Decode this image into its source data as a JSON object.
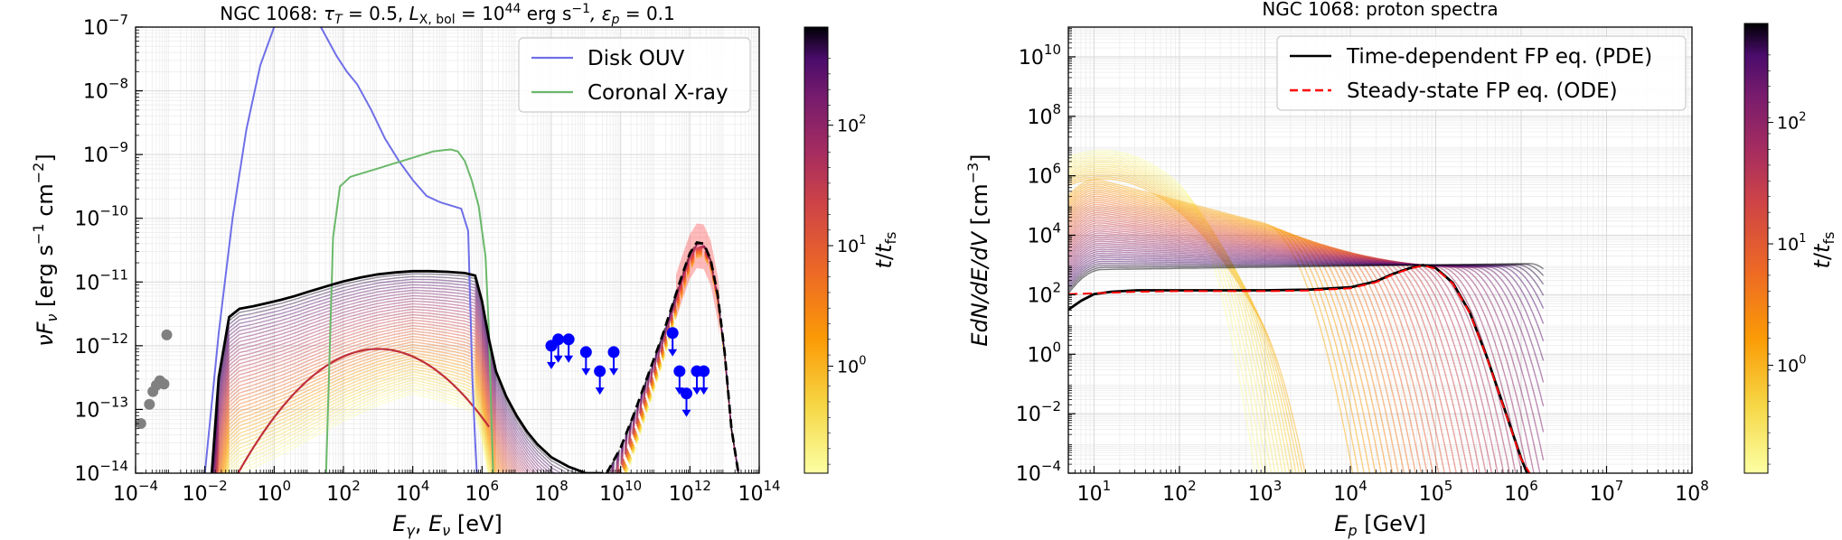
{
  "chart_data": [
    {
      "type": "line",
      "title": "NGC 1068: τ_T = 0.5,  L_X,bol = 10^44 erg s⁻¹,  ε_p = 0.1",
      "title_parts": {
        "prefix": "NGC 1068: ",
        "tau": "τ",
        "tau_sub": "T",
        "tau_val": " = 0.5,  ",
        "L": "L",
        "L_sub": "X, bol",
        "L_val": " = 10",
        "L_exp": "44",
        "L_unit": " erg s",
        "L_unit_exp": "−1",
        "eps": ",  ε",
        "eps_sub": "p",
        "eps_val": " = 0.1"
      },
      "xlabel_parts": {
        "a": "E",
        "a_sub": "γ",
        "mid": ",  ",
        "b": "E",
        "b_sub": "ν",
        "unit": " [eV]"
      },
      "ylabel_parts": {
        "a": "νF",
        "a_sub": "ν",
        "unit": " [erg s",
        "exp1": "−1",
        "mid": " cm",
        "exp2": "−2",
        "end": "]"
      },
      "x_scale": "log",
      "y_scale": "log",
      "xlim": [
        0.0001,
        100000000000000
      ],
      "ylim": [
        1e-14,
        1e-07
      ],
      "x_ticks": [
        {
          "base": "10",
          "exp": "−4",
          "value": 0.0001
        },
        {
          "base": "10",
          "exp": "−2",
          "value": 0.01
        },
        {
          "base": "10",
          "exp": "0",
          "value": 1
        },
        {
          "base": "10",
          "exp": "2",
          "value": 100
        },
        {
          "base": "10",
          "exp": "4",
          "value": 10000
        },
        {
          "base": "10",
          "exp": "6",
          "value": 1000000
        },
        {
          "base": "10",
          "exp": "8",
          "value": 100000000
        },
        {
          "base": "10",
          "exp": "10",
          "value": 10000000000
        },
        {
          "base": "10",
          "exp": "12",
          "value": 1000000000000
        },
        {
          "base": "10",
          "exp": "14",
          "value": 100000000000000
        }
      ],
      "y_ticks": [
        {
          "base": "10",
          "exp": "−14",
          "value": 1e-14
        },
        {
          "base": "10",
          "exp": "−13",
          "value": 1e-13
        },
        {
          "base": "10",
          "exp": "−12",
          "value": 1e-12
        },
        {
          "base": "10",
          "exp": "−11",
          "value": 1e-11
        },
        {
          "base": "10",
          "exp": "−10",
          "value": 1e-10
        },
        {
          "base": "10",
          "exp": "−9",
          "value": 1e-09
        },
        {
          "base": "10",
          "exp": "−8",
          "value": 1e-08
        },
        {
          "base": "10",
          "exp": "−7",
          "value": 1e-07
        }
      ],
      "grid": true,
      "legend": {
        "placement": "top-right",
        "entries": [
          {
            "label": "Disk OUV",
            "color": "#6f6fe8"
          },
          {
            "label": "Coronal X-ray",
            "color": "#6bb86b"
          }
        ]
      },
      "series": [
        {
          "name": "Disk OUV",
          "color": "#6f6fe8",
          "x_log": [
            -2.0,
            -1.6,
            -1.2,
            -0.8,
            -0.4,
            0.0,
            0.3,
            0.6,
            0.9,
            1.2,
            1.5,
            1.8,
            2.1,
            2.4,
            2.8,
            3.2,
            3.6,
            4.0,
            4.4,
            4.8,
            5.1,
            5.4,
            5.6,
            5.72,
            5.8,
            5.85
          ],
          "y_log": [
            -14.0,
            -11.8,
            -10.0,
            -8.6,
            -7.6,
            -7.0,
            -6.7,
            -6.6,
            -6.6,
            -6.85,
            -7.15,
            -7.45,
            -7.7,
            -7.9,
            -8.3,
            -8.75,
            -9.1,
            -9.4,
            -9.65,
            -9.75,
            -9.8,
            -9.85,
            -10.2,
            -12.5,
            -13.5,
            -14.0
          ]
        },
        {
          "name": "Coronal X-ray",
          "color": "#6bb86b",
          "x_log": [
            1.5,
            1.7,
            1.9,
            2.2,
            2.5,
            2.8,
            3.1,
            3.4,
            3.7,
            4.0,
            4.3,
            4.6,
            4.9,
            5.1,
            5.3,
            5.5,
            5.7,
            5.9,
            6.1,
            6.2,
            6.28,
            6.32
          ],
          "y_log": [
            -14.0,
            -10.3,
            -9.5,
            -9.35,
            -9.3,
            -9.25,
            -9.2,
            -9.15,
            -9.1,
            -9.05,
            -9.0,
            -8.95,
            -8.93,
            -8.92,
            -8.95,
            -9.1,
            -9.4,
            -9.8,
            -10.6,
            -11.8,
            -13.3,
            -14.0
          ]
        },
        {
          "name": "",
          "color": "#000000",
          "x_log": [
            -1.8,
            -1.6,
            -1.3,
            -1.0,
            -0.6,
            -0.2,
            0.2,
            0.6,
            1.0,
            1.5,
            2.0,
            2.5,
            3.0,
            3.5,
            4.0,
            4.5,
            5.0,
            5.5,
            5.8,
            6.0,
            6.2,
            6.4,
            6.7,
            7.0,
            7.3,
            7.6,
            8.0,
            8.5,
            9.0,
            9.5
          ],
          "y_log": [
            -14.0,
            -12.5,
            -11.55,
            -11.42,
            -11.38,
            -11.33,
            -11.28,
            -11.22,
            -11.15,
            -11.07,
            -10.99,
            -10.93,
            -10.88,
            -10.85,
            -10.83,
            -10.83,
            -10.84,
            -10.86,
            -10.9,
            -11.3,
            -11.9,
            -12.4,
            -12.8,
            -13.1,
            -13.35,
            -13.55,
            -13.75,
            -13.9,
            -14.0,
            -14.0
          ]
        },
        {
          "name": "",
          "color": "#000000",
          "dash": true,
          "x_log": [
            9.6,
            10.0,
            10.4,
            10.8,
            11.2,
            11.5,
            11.8,
            12.0,
            12.2,
            12.4,
            12.6,
            12.8,
            13.0,
            13.2,
            13.4
          ],
          "y_log": [
            -14.0,
            -13.6,
            -13.05,
            -12.45,
            -11.85,
            -11.35,
            -10.85,
            -10.55,
            -10.38,
            -10.4,
            -10.65,
            -11.2,
            -12.1,
            -13.3,
            -14.0
          ]
        }
      ],
      "data_points": {
        "grey": {
          "x_log": [
            -3.85,
            -3.6,
            -3.5,
            -3.4,
            -3.3,
            -3.25,
            -3.18,
            -3.1
          ],
          "y_log": [
            -13.22,
            -12.92,
            -12.72,
            -12.62,
            -12.55,
            -12.58,
            -12.6,
            -11.83
          ],
          "color": "#808080"
        },
        "blue": {
          "x_log": [
            8.0,
            8.2,
            8.5,
            9.0,
            9.4,
            9.8,
            11.5,
            11.7,
            11.9,
            12.2,
            12.4
          ],
          "y_log": [
            -12.0,
            -11.9,
            -11.9,
            -12.1,
            -12.4,
            -12.1,
            -11.8,
            -12.4,
            -12.75,
            -12.4,
            -12.4
          ],
          "color": "#0000ff"
        }
      },
      "colorbar": {
        "label_parts": {
          "a": "t",
          "mid": "/",
          "b": "t",
          "b_sub": "fs"
        },
        "ticks": [
          {
            "base": "10",
            "exp": "0"
          },
          {
            "base": "10",
            "exp": "1"
          },
          {
            "base": "10",
            "exp": "2"
          }
        ],
        "colormap": "inferno_r"
      }
    },
    {
      "type": "line",
      "title": "NGC 1068: proton spectra",
      "xlabel_parts": {
        "a": "E",
        "a_sub": "p",
        "unit": " [GeV]"
      },
      "ylabel_parts": {
        "a": "EdN/dE/dV",
        "unit": " [cm",
        "exp1": "−3",
        "end": "]"
      },
      "x_scale": "log",
      "y_scale": "log",
      "xlim": [
        5,
        100000000
      ],
      "ylim": [
        0.0001,
        100000000000
      ],
      "x_ticks": [
        {
          "base": "10",
          "exp": "1",
          "value": 10
        },
        {
          "base": "10",
          "exp": "2",
          "value": 100
        },
        {
          "base": "10",
          "exp": "3",
          "value": 1000
        },
        {
          "base": "10",
          "exp": "4",
          "value": 10000
        },
        {
          "base": "10",
          "exp": "5",
          "value": 100000
        },
        {
          "base": "10",
          "exp": "6",
          "value": 1000000
        },
        {
          "base": "10",
          "exp": "7",
          "value": 10000000
        },
        {
          "base": "10",
          "exp": "8",
          "value": 100000000
        }
      ],
      "y_ticks": [
        {
          "base": "10",
          "exp": "−4",
          "value": 0.0001
        },
        {
          "base": "10",
          "exp": "−2",
          "value": 0.01
        },
        {
          "base": "10",
          "exp": "0",
          "value": 1
        },
        {
          "base": "10",
          "exp": "2",
          "value": 100
        },
        {
          "base": "10",
          "exp": "4",
          "value": 10000
        },
        {
          "base": "10",
          "exp": "6",
          "value": 1000000
        },
        {
          "base": "10",
          "exp": "8",
          "value": 100000000
        },
        {
          "base": "10",
          "exp": "10",
          "value": 10000000000
        }
      ],
      "grid": true,
      "legend": {
        "placement": "top-center",
        "entries": [
          {
            "label": "Time-dependent FP eq. (PDE)",
            "color": "#000000"
          },
          {
            "label": "Steady-state FP eq. (ODE)",
            "color": "#ff0000",
            "dash": true
          }
        ]
      },
      "series": [
        {
          "name": "Time-dependent FP eq. (PDE)",
          "color": "#000000",
          "x_log": [
            0.7,
            0.85,
            1.0,
            1.2,
            1.5,
            2.0,
            2.5,
            3.0,
            3.5,
            4.0,
            4.3,
            4.5,
            4.7,
            4.85,
            5.0,
            5.2,
            5.4,
            5.6,
            5.8,
            6.0,
            6.07
          ],
          "y_log": [
            1.5,
            1.8,
            2.02,
            2.1,
            2.15,
            2.15,
            2.15,
            2.15,
            2.17,
            2.25,
            2.45,
            2.7,
            2.9,
            3.0,
            2.9,
            2.4,
            1.4,
            -0.1,
            -1.8,
            -3.5,
            -4.0
          ]
        },
        {
          "name": "Steady-state FP eq. (ODE)",
          "color": "#ff0000",
          "dash": true,
          "x_log": [
            0.7,
            1.0,
            1.5,
            2.0,
            2.5,
            3.0,
            3.5,
            4.0,
            4.3,
            4.5,
            4.7,
            4.85,
            5.0,
            5.2,
            5.4,
            5.6,
            5.8,
            6.0,
            6.1
          ],
          "y_log": [
            2.02,
            2.05,
            2.1,
            2.12,
            2.12,
            2.12,
            2.14,
            2.22,
            2.42,
            2.68,
            2.88,
            2.98,
            2.88,
            2.38,
            1.38,
            -0.12,
            -1.82,
            -3.52,
            -4.0
          ]
        }
      ],
      "colorbar": {
        "label_parts": {
          "a": "t",
          "mid": "/",
          "b": "t",
          "b_sub": "fs"
        },
        "ticks": [
          {
            "base": "10",
            "exp": "0"
          },
          {
            "base": "10",
            "exp": "1"
          },
          {
            "base": "10",
            "exp": "2"
          }
        ],
        "colormap": "inferno_r"
      }
    }
  ]
}
